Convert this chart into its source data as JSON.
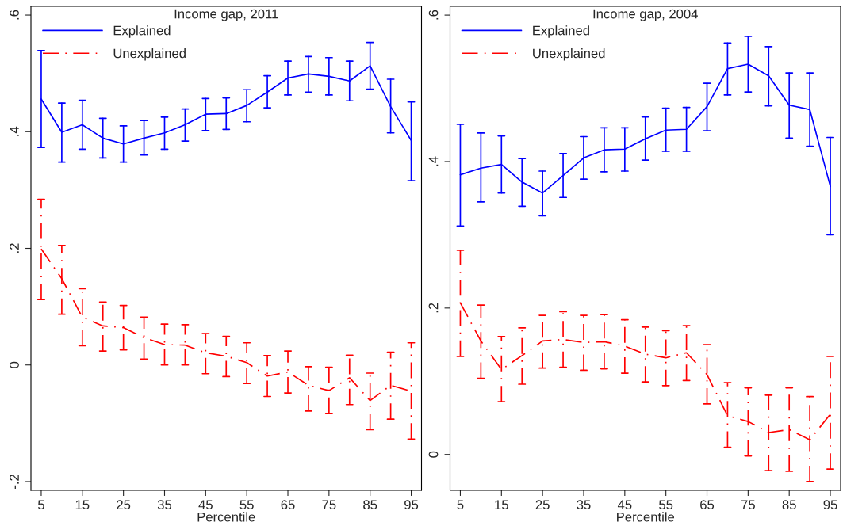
{
  "chart_data": [
    {
      "type": "line",
      "title": "Income gap, 2011",
      "xlabel": "Percentile",
      "x": [
        5,
        10,
        15,
        20,
        25,
        30,
        35,
        40,
        45,
        50,
        55,
        60,
        65,
        70,
        75,
        80,
        85,
        90,
        95
      ],
      "xlim": [
        2.5,
        97.5
      ],
      "xticks": [
        5,
        15,
        25,
        35,
        45,
        55,
        65,
        75,
        85,
        95
      ],
      "ylim": [
        -0.215,
        0.615
      ],
      "yticks": [
        {
          "value": -0.2,
          "label": "-.2"
        },
        {
          "value": 0,
          "label": "0"
        },
        {
          "value": 0.2,
          "label": ".2"
        },
        {
          "value": 0.4,
          "label": ".4"
        },
        {
          "value": 0.6,
          "label": ".6"
        }
      ],
      "grid": false,
      "legend": "top left",
      "marker": "none",
      "series": [
        {
          "name": "Explained",
          "color": "#0000ff",
          "line_style": "solid",
          "values": [
            0.456,
            0.399,
            0.412,
            0.389,
            0.379,
            0.389,
            0.398,
            0.412,
            0.43,
            0.431,
            0.445,
            0.468,
            0.492,
            0.499,
            0.495,
            0.487,
            0.513,
            0.443,
            0.385
          ],
          "errors": [
            [
              0.373,
              0.539
            ],
            [
              0.348,
              0.449
            ],
            [
              0.37,
              0.454
            ],
            [
              0.355,
              0.423
            ],
            [
              0.348,
              0.41
            ],
            [
              0.36,
              0.419
            ],
            [
              0.37,
              0.425
            ],
            [
              0.384,
              0.439
            ],
            [
              0.402,
              0.457
            ],
            [
              0.404,
              0.458
            ],
            [
              0.417,
              0.472
            ],
            [
              0.441,
              0.496
            ],
            [
              0.463,
              0.521
            ],
            [
              0.468,
              0.529
            ],
            [
              0.463,
              0.527
            ],
            [
              0.453,
              0.521
            ],
            [
              0.473,
              0.553
            ],
            [
              0.398,
              0.49
            ],
            [
              0.316,
              0.451
            ]
          ]
        },
        {
          "name": "Unexplained",
          "color": "#ff0000",
          "line_style": "dashdot",
          "values": [
            0.199,
            0.148,
            0.082,
            0.067,
            0.064,
            0.047,
            0.035,
            0.034,
            0.021,
            0.015,
            0.004,
            -0.019,
            -0.012,
            -0.035,
            -0.044,
            -0.022,
            -0.061,
            -0.035,
            -0.045
          ],
          "errors": [
            [
              0.112,
              0.284
            ],
            [
              0.087,
              0.205
            ],
            [
              0.033,
              0.131
            ],
            [
              0.024,
              0.108
            ],
            [
              0.026,
              0.102
            ],
            [
              0.01,
              0.082
            ],
            [
              0.0,
              0.07
            ],
            [
              0.0,
              0.069
            ],
            [
              -0.015,
              0.054
            ],
            [
              -0.02,
              0.049
            ],
            [
              -0.032,
              0.038
            ],
            [
              -0.054,
              0.016
            ],
            [
              -0.048,
              0.024
            ],
            [
              -0.079,
              -0.003
            ],
            [
              -0.083,
              -0.004
            ],
            [
              -0.068,
              0.017
            ],
            [
              -0.111,
              -0.014
            ],
            [
              -0.093,
              0.022
            ],
            [
              -0.127,
              0.038
            ]
          ]
        }
      ]
    },
    {
      "type": "line",
      "title": "Income gap, 2004",
      "xlabel": "Percentile",
      "x": [
        5,
        10,
        15,
        20,
        25,
        30,
        35,
        40,
        45,
        50,
        55,
        60,
        65,
        70,
        75,
        80,
        85,
        90,
        95
      ],
      "xlim": [
        2.5,
        97.5
      ],
      "xticks": [
        5,
        15,
        25,
        35,
        45,
        55,
        65,
        75,
        85,
        95
      ],
      "ylim": [
        -0.049,
        0.612
      ],
      "yticks": [
        {
          "value": 0,
          "label": "0"
        },
        {
          "value": 0.2,
          "label": ".2"
        },
        {
          "value": 0.4,
          "label": ".4"
        },
        {
          "value": 0.6,
          "label": ".6"
        }
      ],
      "grid": false,
      "legend": "top left",
      "marker": "none",
      "series": [
        {
          "name": "Explained",
          "color": "#0000ff",
          "line_style": "solid",
          "values": [
            0.382,
            0.391,
            0.396,
            0.372,
            0.357,
            0.381,
            0.405,
            0.416,
            0.417,
            0.431,
            0.443,
            0.444,
            0.475,
            0.527,
            0.533,
            0.517,
            0.477,
            0.471,
            0.366
          ],
          "errors": [
            [
              0.312,
              0.451
            ],
            [
              0.345,
              0.439
            ],
            [
              0.357,
              0.435
            ],
            [
              0.339,
              0.404
            ],
            [
              0.326,
              0.387
            ],
            [
              0.351,
              0.411
            ],
            [
              0.376,
              0.434
            ],
            [
              0.386,
              0.446
            ],
            [
              0.387,
              0.446
            ],
            [
              0.402,
              0.461
            ],
            [
              0.414,
              0.473
            ],
            [
              0.414,
              0.474
            ],
            [
              0.442,
              0.507
            ],
            [
              0.491,
              0.562
            ],
            [
              0.495,
              0.571
            ],
            [
              0.476,
              0.557
            ],
            [
              0.432,
              0.521
            ],
            [
              0.421,
              0.521
            ],
            [
              0.3,
              0.433
            ]
          ]
        },
        {
          "name": "Unexplained",
          "color": "#ff0000",
          "line_style": "dashdot",
          "values": [
            0.207,
            0.155,
            0.116,
            0.135,
            0.155,
            0.157,
            0.153,
            0.154,
            0.148,
            0.137,
            0.132,
            0.139,
            0.109,
            0.053,
            0.045,
            0.03,
            0.034,
            0.02,
            0.055
          ],
          "errors": [
            [
              0.134,
              0.279
            ],
            [
              0.104,
              0.204
            ],
            [
              0.072,
              0.161
            ],
            [
              0.096,
              0.173
            ],
            [
              0.118,
              0.19
            ],
            [
              0.119,
              0.195
            ],
            [
              0.115,
              0.19
            ],
            [
              0.117,
              0.191
            ],
            [
              0.111,
              0.184
            ],
            [
              0.099,
              0.174
            ],
            [
              0.094,
              0.169
            ],
            [
              0.101,
              0.176
            ],
            [
              0.069,
              0.15
            ],
            [
              0.01,
              0.098
            ],
            [
              -0.002,
              0.091
            ],
            [
              -0.022,
              0.081
            ],
            [
              -0.023,
              0.091
            ],
            [
              -0.037,
              0.079
            ],
            [
              -0.02,
              0.134
            ]
          ]
        }
      ]
    }
  ]
}
